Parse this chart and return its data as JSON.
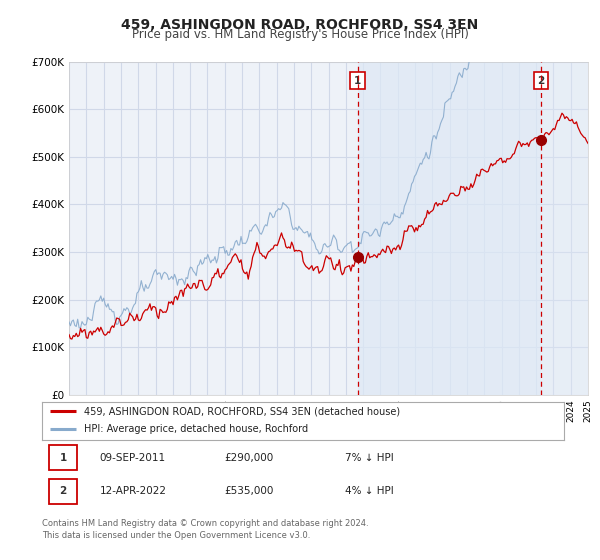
{
  "title": "459, ASHINGDON ROAD, ROCHFORD, SS4 3EN",
  "subtitle": "Price paid vs. HM Land Registry's House Price Index (HPI)",
  "title_fontsize": 10,
  "subtitle_fontsize": 8.5,
  "background_color": "#ffffff",
  "plot_bg_color": "#eef2f8",
  "grid_color": "#d0d8e8",
  "shade_color": "#dde8f5",
  "ylim": [
    0,
    700000
  ],
  "yticks": [
    0,
    100000,
    200000,
    300000,
    400000,
    500000,
    600000,
    700000
  ],
  "ytick_labels": [
    "£0",
    "£100K",
    "£200K",
    "£300K",
    "£400K",
    "£500K",
    "£600K",
    "£700K"
  ],
  "sale1_price": 290000,
  "sale2_price": 535000,
  "sale1_x": 2011.69,
  "sale2_x": 2022.29,
  "line1_color": "#cc0000",
  "line2_color": "#88aacc",
  "line1_label": "459, ASHINGDON ROAD, ROCHFORD, SS4 3EN (detached house)",
  "line2_label": "HPI: Average price, detached house, Rochford",
  "marker_color": "#990000",
  "vline_color": "#cc0000",
  "table_row1": [
    "1",
    "09-SEP-2011",
    "£290,000",
    "7% ↓ HPI"
  ],
  "table_row2": [
    "2",
    "12-APR-2022",
    "£535,000",
    "4% ↓ HPI"
  ],
  "footer_text": "Contains HM Land Registry data © Crown copyright and database right 2024.\nThis data is licensed under the Open Government Licence v3.0.",
  "xstart": 1995,
  "xend": 2025
}
